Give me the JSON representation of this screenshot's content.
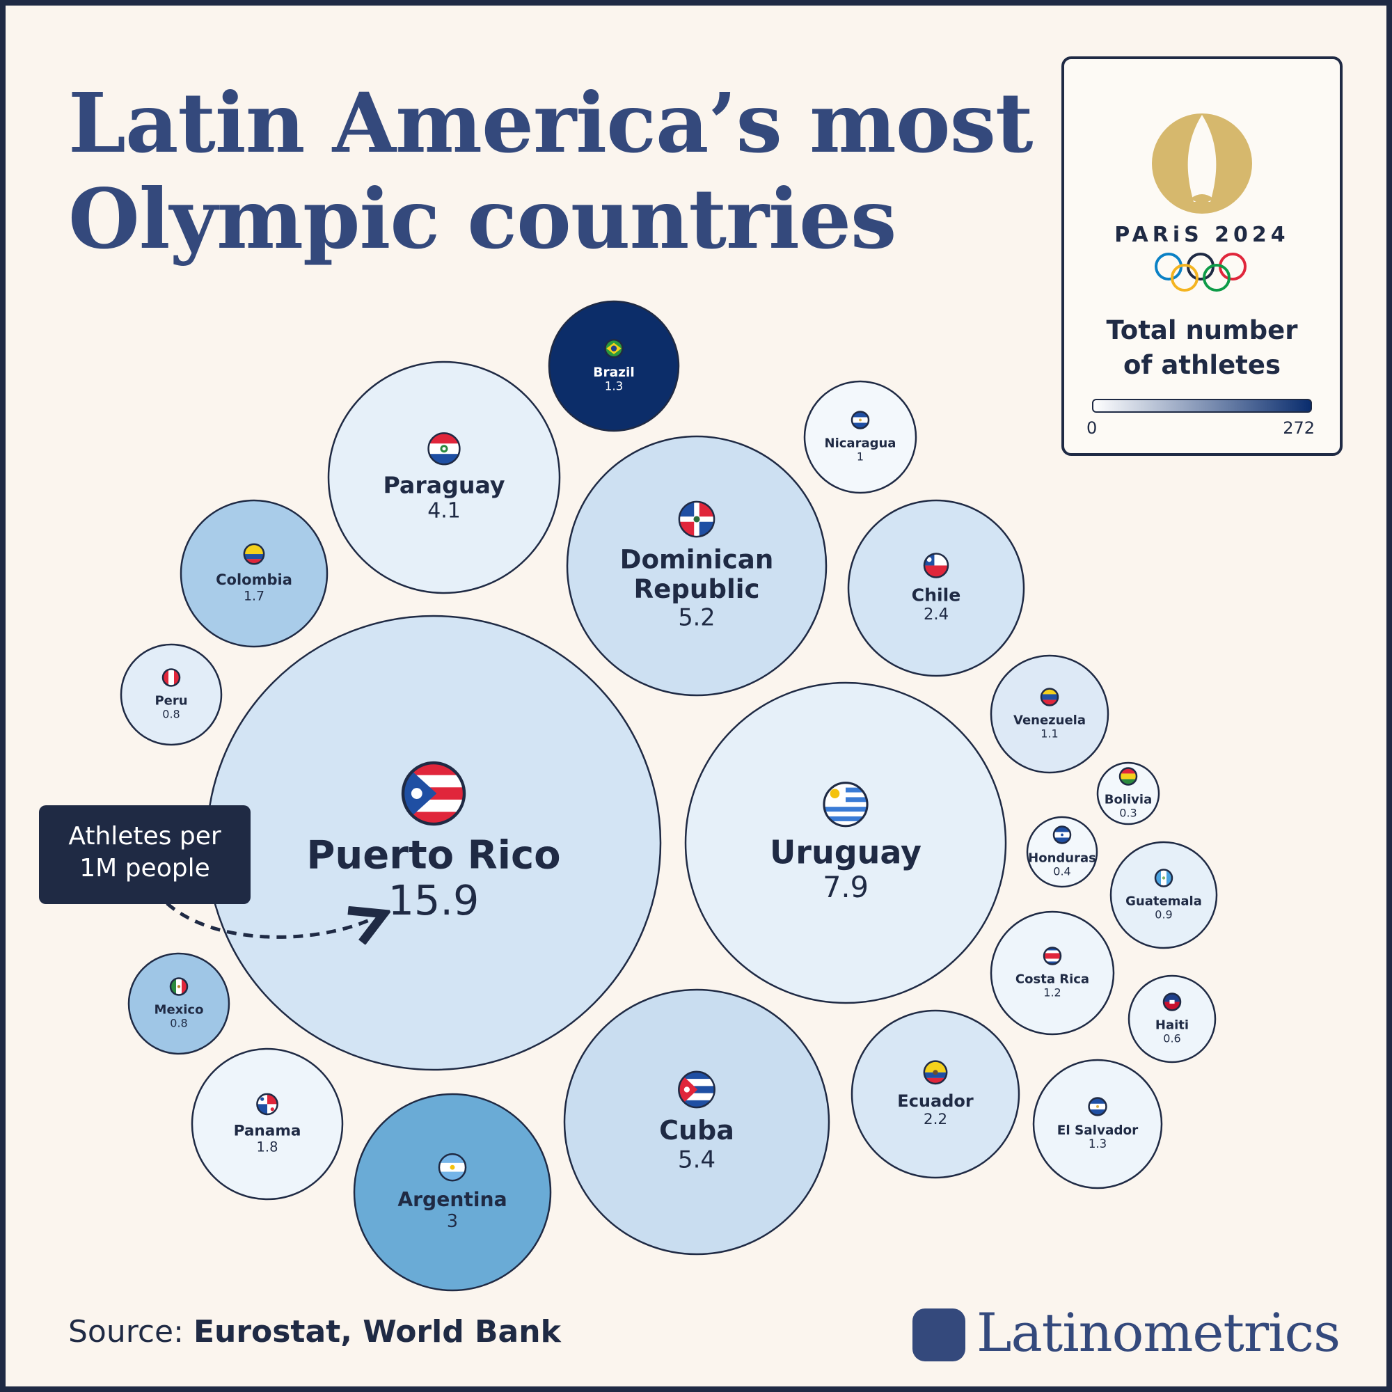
{
  "header": {
    "title_line1": "Latin America’s most",
    "title_line2": "Olympic countries"
  },
  "legend": {
    "logo_text": "PARiS 2024",
    "title_line1": "Total number",
    "title_line2": "of athletes",
    "min_label": "0",
    "max_label": "272",
    "color_low": "#ffffff",
    "color_high": "#0a2d6e"
  },
  "annotation": {
    "line1": "Athletes per",
    "line2": "1M people"
  },
  "footer": {
    "source_prefix": "Source: ",
    "source_names": "Eurostat, World Bank",
    "brand": "Latinometrics"
  },
  "chart_data": {
    "type": "bubble",
    "size_measure": "Athletes per 1M people",
    "color_measure": "Total number of athletes",
    "color_range": [
      0,
      272
    ],
    "items": [
      {
        "country": "Puerto Rico",
        "value": 15.9,
        "flag": "puerto-rico",
        "color": "#d3e4f4"
      },
      {
        "country": "Uruguay",
        "value": 7.9,
        "flag": "uruguay",
        "color": "#e6f0f9"
      },
      {
        "country": "Cuba",
        "value": 5.4,
        "flag": "cuba",
        "color": "#c9ddf0"
      },
      {
        "country": "Dominican Republic",
        "value": 5.2,
        "flag": "dominican-republic",
        "color": "#cde0f2"
      },
      {
        "country": "Paraguay",
        "value": 4.1,
        "flag": "paraguay",
        "color": "#e6f0f9"
      },
      {
        "country": "Argentina",
        "value": 3,
        "flag": "argentina",
        "color": "#6aabd6"
      },
      {
        "country": "Chile",
        "value": 2.4,
        "flag": "chile",
        "color": "#d3e4f4"
      },
      {
        "country": "Ecuador",
        "value": 2.2,
        "flag": "ecuador",
        "color": "#d8e7f5"
      },
      {
        "country": "Panama",
        "value": 1.8,
        "flag": "panama",
        "color": "#eef5fb"
      },
      {
        "country": "Colombia",
        "value": 1.7,
        "flag": "colombia",
        "color": "#a9cce9"
      },
      {
        "country": "Brazil",
        "value": 1.3,
        "flag": "brazil",
        "color": "#0c2d69"
      },
      {
        "country": "El Salvador",
        "value": 1.3,
        "flag": "el-salvador",
        "color": "#eef5fb"
      },
      {
        "country": "Costa Rica",
        "value": 1.2,
        "flag": "costa-rica",
        "color": "#eef5fb"
      },
      {
        "country": "Venezuela",
        "value": 1.1,
        "flag": "venezuela",
        "color": "#dde9f6"
      },
      {
        "country": "Nicaragua",
        "value": 1,
        "flag": "nicaragua",
        "color": "#f3f8fc"
      },
      {
        "country": "Guatemala",
        "value": 0.9,
        "flag": "guatemala",
        "color": "#e6f0f9"
      },
      {
        "country": "Peru",
        "value": 0.8,
        "flag": "peru",
        "color": "#e2edf8"
      },
      {
        "country": "Mexico",
        "value": 0.8,
        "flag": "mexico",
        "color": "#9fc6e6"
      },
      {
        "country": "Haiti",
        "value": 0.6,
        "flag": "haiti",
        "color": "#eef5fb"
      },
      {
        "country": "Honduras",
        "value": 0.4,
        "flag": "honduras",
        "color": "#f3f8fc"
      },
      {
        "country": "Bolivia",
        "value": 0.3,
        "flag": "bolivia",
        "color": "#f3f8fc"
      }
    ]
  }
}
